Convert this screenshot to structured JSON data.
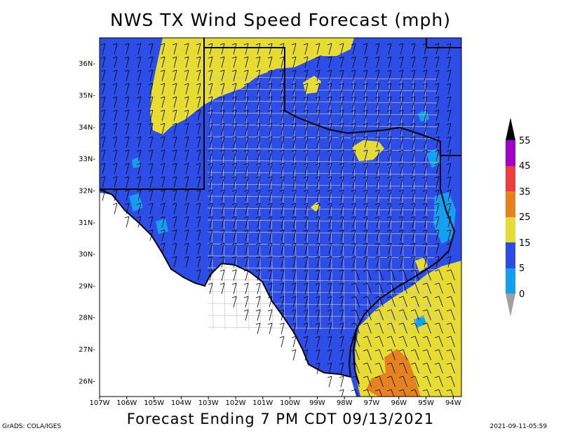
{
  "title": "NWS TX Wind Speed Forecast (mph)",
  "subtitle": "Forecast Ending 7 PM CDT 09/13/2021",
  "credit": "GrADS: COLA/IGES",
  "timestamp": "2021-09-11-05:59",
  "map": {
    "lat_labels": [
      "36N",
      "35N",
      "34N",
      "33N",
      "32N",
      "31N",
      "30N",
      "29N",
      "28N",
      "27N",
      "26N"
    ],
    "lon_labels": [
      "107W",
      "106W",
      "105W",
      "104W",
      "103W",
      "102W",
      "101W",
      "100W",
      "99W",
      "98W",
      "97W",
      "96W",
      "95W",
      "94W"
    ],
    "lat_range": [
      25.5,
      36.8
    ],
    "lon_range": [
      -107,
      -93.7
    ]
  },
  "legend": {
    "labels": [
      "55",
      "45",
      "35",
      "25",
      "15",
      "5",
      "0"
    ],
    "colors": {
      "above55": "#000000",
      "45-55": "#a000c8",
      "35-45": "#f03c3c",
      "25-35": "#e6821e",
      "15-25": "#e6dc32",
      "5-15": "#2d4ee6",
      "0-5": "#14a0f0",
      "below0": "#a0a0a0"
    }
  },
  "colors": {
    "calm": "#2d4ee6",
    "breezy": "#e6dc32",
    "windy": "#e6821e",
    "light": "#14a0f0",
    "border": "#000000",
    "county": "#c8c8c8"
  }
}
